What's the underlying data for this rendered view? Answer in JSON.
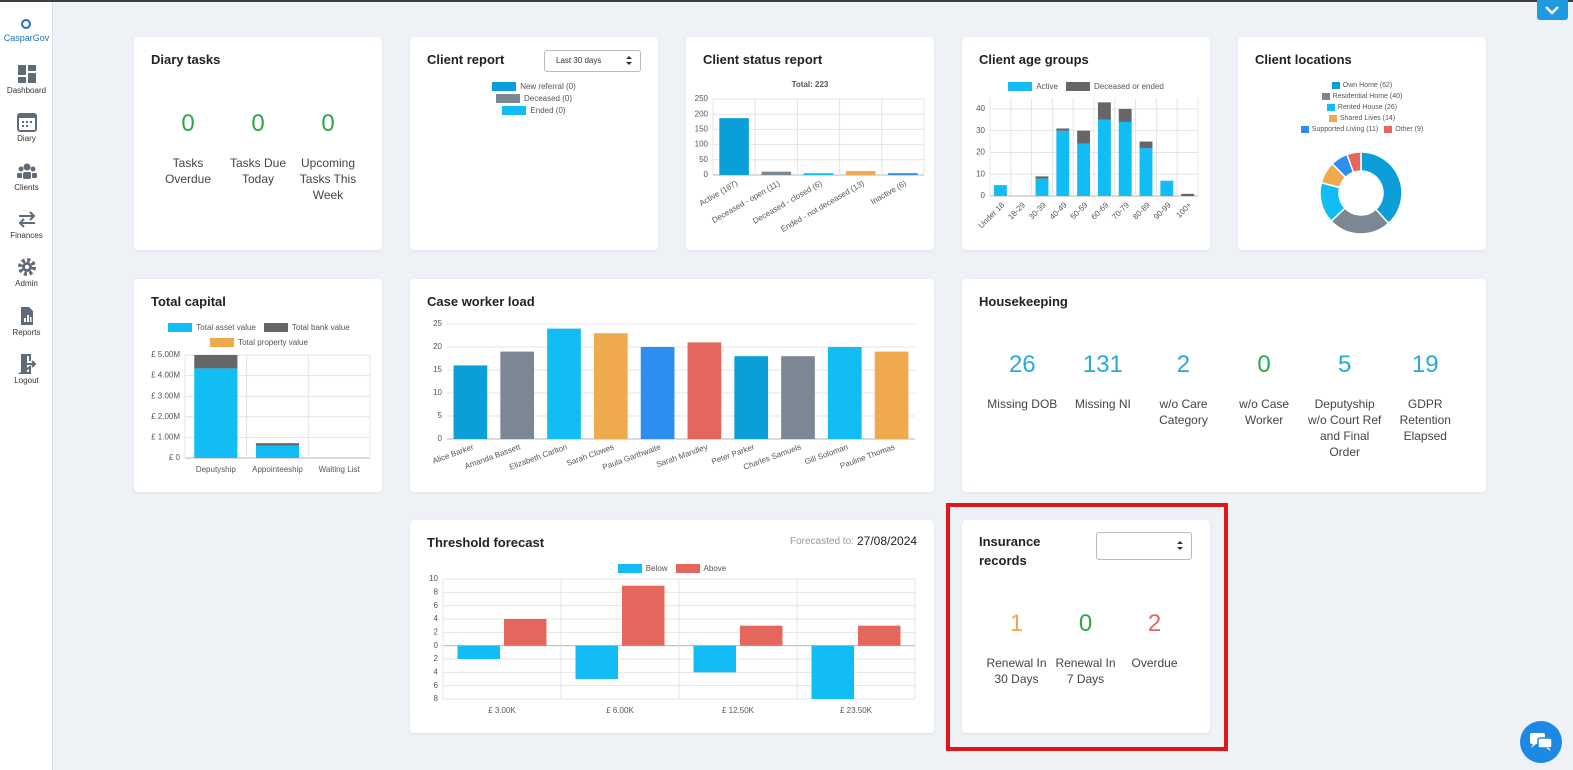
{
  "sidebar": {
    "brand": "CasparGov",
    "nav": [
      "Dashboard",
      "Diary",
      "Clients",
      "Finances",
      "Admin",
      "Reports",
      "Logout"
    ]
  },
  "diary_tasks": {
    "title": "Diary tasks",
    "stats": [
      {
        "value": 0,
        "label": "Tasks Overdue",
        "color": "#2aa84a"
      },
      {
        "value": 0,
        "label": "Tasks Due Today",
        "color": "#2aa84a"
      },
      {
        "value": 0,
        "label": "Upcoming Tasks This Week",
        "color": "#2aa84a"
      }
    ]
  },
  "client_report": {
    "title": "Client report",
    "period": "Last 30 days",
    "legend": [
      {
        "name": "New referral (0)",
        "color": "#0b9ed8"
      },
      {
        "name": "Deceased (0)",
        "color": "#7b8792"
      },
      {
        "name": "Ended (0)",
        "color": "#12bcf4"
      }
    ]
  },
  "chart_data": [
    {
      "type": "bar",
      "heading": "Client status report",
      "title": "Total: 223",
      "categories": [
        "Active (187)",
        "Deceased - open (11)",
        "Deceased - closed (6)",
        "Ended - not deceased (13)",
        "Inactive (6)"
      ],
      "series": [
        {
          "values": [
            187,
            11,
            6,
            13,
            6
          ],
          "colors": [
            "#0b9ed8",
            "#7b8792",
            "#12bcf4",
            "#f0aa4e",
            "#2b8ef0"
          ]
        }
      ],
      "ylim": [
        0,
        250
      ],
      "yticks": [
        0,
        50,
        100,
        150,
        200,
        250
      ],
      "grid": true
    },
    {
      "type": "bar",
      "heading": "Client age groups",
      "stacked": true,
      "categories": [
        "Under 18",
        "18-29",
        "30-39",
        "40-49",
        "50-59",
        "60-69",
        "70-79",
        "80-89",
        "90-99",
        "100+"
      ],
      "series": [
        {
          "name": "Active",
          "color": "#12bcf4",
          "values": [
            5,
            0,
            8,
            30,
            24,
            35,
            34,
            22,
            7,
            0
          ]
        },
        {
          "name": "Deceased or ended",
          "color": "#666666",
          "values": [
            0,
            0,
            1,
            1,
            6,
            8,
            6,
            3,
            0,
            1
          ]
        }
      ],
      "ylim": [
        0,
        45
      ],
      "yticks": [
        0,
        10,
        20,
        30,
        40
      ],
      "grid": true
    },
    {
      "type": "doughnut",
      "heading": "Client locations",
      "categories": [
        "Own Home (62)",
        "Residential Home (40)",
        "Rented House (26)",
        "Shared Lives (14)",
        "Supported Living (11)",
        "Other (9)"
      ],
      "values": [
        62,
        40,
        26,
        14,
        11,
        9
      ],
      "colors": [
        "#0b9ed8",
        "#7b8792",
        "#12bcf4",
        "#f0aa4e",
        "#2b8ef0",
        "#e4665c"
      ]
    },
    {
      "type": "bar",
      "heading": "Total capital",
      "stacked": true,
      "categories": [
        "Deputyship",
        "Appointeeship",
        "Waiting List"
      ],
      "series": [
        {
          "name": "Total asset value",
          "color": "#12bcf4",
          "values": [
            4350000,
            600000,
            0
          ]
        },
        {
          "name": "Total bank value",
          "color": "#666666",
          "values": [
            650000,
            120000,
            0
          ]
        },
        {
          "name": "Total property value",
          "color": "#f0aa4e",
          "values": [
            0,
            0,
            0
          ]
        }
      ],
      "ylim": [
        0,
        5000000
      ],
      "yticks": [
        {
          "value": 0,
          "label": "£ 0"
        },
        {
          "value": 1000000,
          "label": "£ 1.00M"
        },
        {
          "value": 2000000,
          "label": "£ 2.00M"
        },
        {
          "value": 3000000,
          "label": "£ 3.00M"
        },
        {
          "value": 4000000,
          "label": "£ 4.00M"
        },
        {
          "value": 5000000,
          "label": "£ 5.00M"
        }
      ],
      "grid": true
    },
    {
      "type": "bar",
      "heading": "Case worker load",
      "categories": [
        "Alice Barker",
        "Amanda Bassett",
        "Elizabeth Carlton",
        "Sarah Clowes",
        "Paula Garthwaite",
        "Sarah Mandley",
        "Peter Parker",
        "Charles Samuels",
        "Gill Soloman",
        "Pauline Thomas"
      ],
      "series": [
        {
          "values": [
            16,
            19,
            24,
            23,
            20,
            21,
            18,
            18,
            20,
            19
          ],
          "colors": [
            "#0b9ed8",
            "#7b8792",
            "#12bcf4",
            "#f0aa4e",
            "#2b8ef0",
            "#e4665c",
            "#0b9ed8",
            "#7b8792",
            "#12bcf4",
            "#f0aa4e"
          ]
        }
      ],
      "ylim": [
        0,
        25
      ],
      "yticks": [
        0,
        5,
        10,
        15,
        20,
        25
      ],
      "grid": true
    },
    {
      "type": "bar",
      "heading": "Threshold forecast",
      "forecast_label": "Forecasted to:",
      "forecast_date": "27/08/2024",
      "categories": [
        "£ 3.00K",
        "£ 6.00K",
        "£ 12.50K",
        "£ 23.50K"
      ],
      "series": [
        {
          "name": "Below",
          "color": "#12bcf4",
          "values": [
            -2,
            -5,
            -4,
            -8
          ]
        },
        {
          "name": "Above",
          "color": "#e4665c",
          "values": [
            4,
            9,
            3,
            3
          ]
        }
      ],
      "ylim": [
        -8,
        10
      ],
      "yticks": [
        {
          "value": -8,
          "label": "8"
        },
        {
          "value": -6,
          "label": "6"
        },
        {
          "value": -4,
          "label": "4"
        },
        {
          "value": -2,
          "label": "2"
        },
        0,
        2,
        4,
        6,
        8,
        10
      ],
      "grid": true
    }
  ],
  "housekeeping": {
    "title": "Housekeeping",
    "stats": [
      {
        "value": 26,
        "label": "Missing DOB",
        "color": "#2ba8d8"
      },
      {
        "value": 131,
        "label": "Missing NI",
        "color": "#2ba8d8"
      },
      {
        "value": 2,
        "label": "w/o Care Category",
        "color": "#2ba8d8"
      },
      {
        "value": 0,
        "label": "w/o Case Worker",
        "color": "#2aa84a"
      },
      {
        "value": 5,
        "label": "Deputyship w/o Court Ref and Final Order",
        "color": "#2ba8d8"
      },
      {
        "value": 19,
        "label": "GDPR Retention Elapsed",
        "color": "#2ba8d8"
      }
    ]
  },
  "insurance_records": {
    "title": "Insurance records",
    "stats": [
      {
        "value": 1,
        "label": "Renewal In 30 Days",
        "color": "#f0aa4e"
      },
      {
        "value": 0,
        "label": "Renewal In 7 Days",
        "color": "#2aa84a"
      },
      {
        "value": 2,
        "label": "Overdue",
        "color": "#e4665c"
      }
    ]
  }
}
